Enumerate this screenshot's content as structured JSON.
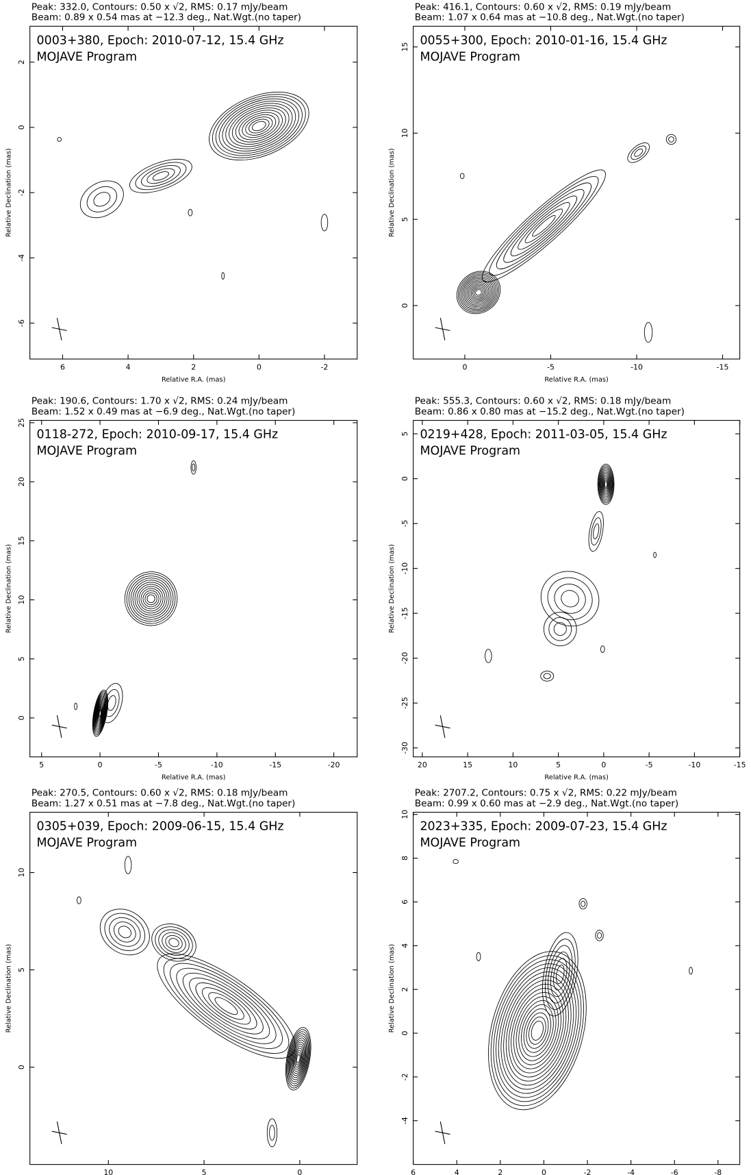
{
  "chart_data": [
    {
      "type": "contour",
      "header_line1": "Peak: 332.0, Contours: 0.50 x √2, RMS: 0.17 mJy/beam",
      "header_line2": "Beam: 0.89 x 0.54 mas at −12.3 deg., Nat.Wgt.(no taper)",
      "title": "0003+380, Epoch: 2010-07-12, 15.4 GHz",
      "subtitle": "MOJAVE Program",
      "x_label": "Relative R.A. (mas)",
      "y_label": "Relative Declination (mas)",
      "xlim": [
        7,
        -3
      ],
      "xticks": [
        6,
        4,
        2,
        0,
        -2
      ],
      "ylim": [
        -7.1,
        3.1
      ],
      "yticks": [
        -6,
        -4,
        -2,
        0,
        2
      ]
    },
    {
      "type": "contour",
      "header_line1": "Peak: 416.1, Contours: 0.60 x √2, RMS: 0.19 mJy/beam",
      "header_line2": "Beam: 1.07 x 0.64 mas at −10.8 deg., Nat.Wgt.(no taper)",
      "title": "0055+300, Epoch: 2010-01-16, 15.4 GHz",
      "subtitle": "MOJAVE Program",
      "x_label": "Relative R.A. (mas)",
      "y_label": "Relative Declination (mas)",
      "xlim": [
        3,
        -16
      ],
      "xticks": [
        0,
        -5,
        -10,
        -15
      ],
      "ylim": [
        -3.1,
        16.2
      ],
      "yticks": [
        0,
        5,
        10,
        15
      ]
    },
    {
      "type": "contour",
      "header_line1": "Peak: 190.6, Contours: 1.70 x √2, RMS: 0.24 mJy/beam",
      "header_line2": "Beam: 1.52 x 0.49 mas at −6.9 deg., Nat.Wgt.(no taper)",
      "title": "0118-272, Epoch: 2010-09-17, 15.4 GHz",
      "subtitle": "MOJAVE Program",
      "x_label": "Relative R.A. (mas)",
      "y_label": "Relative Declination (mas)",
      "xlim": [
        6,
        -22
      ],
      "xticks": [
        5,
        0,
        -5,
        -10,
        -15,
        -20
      ],
      "ylim": [
        -3.3,
        25.2
      ],
      "yticks": [
        0,
        5,
        10,
        15,
        20,
        25
      ]
    },
    {
      "type": "contour",
      "header_line1": "Peak: 555.3, Contours: 0.60 x √2, RMS: 0.18 mJy/beam",
      "header_line2": "Beam: 0.86 x 0.80 mas at −15.2 deg., Nat.Wgt.(no taper)",
      "title": "0219+428, Epoch: 2011-03-05, 15.4 GHz",
      "subtitle": "MOJAVE Program",
      "x_label": "Relative R.A. (mas)",
      "y_label": "Relative Declination (mas)",
      "xlim": [
        21,
        -15
      ],
      "xticks": [
        20,
        15,
        10,
        5,
        0,
        -5,
        -10,
        -15
      ],
      "ylim": [
        -31,
        6.5
      ],
      "yticks": [
        -30,
        -25,
        -20,
        -15,
        -10,
        -5,
        0,
        5
      ]
    },
    {
      "type": "contour",
      "header_line1": "Peak: 270.5, Contours: 0.60 x √2, RMS: 0.18 mJy/beam",
      "header_line2": "Beam: 1.27 x 0.51 mas at −7.8 deg., Nat.Wgt.(no taper)",
      "title": "0305+039, Epoch: 2009-06-15, 15.4 GHz",
      "subtitle": "MOJAVE Program",
      "x_label": "Relative R.A. (mas)",
      "y_label": "Relative Declination (mas)",
      "xlim": [
        14.1,
        -3
      ],
      "xticks": [
        10,
        5,
        0
      ],
      "ylim": [
        -5,
        13.1
      ],
      "yticks": [
        0,
        5,
        10
      ]
    },
    {
      "type": "contour",
      "header_line1": "Peak: 2707.2, Contours: 0.75 x √2, RMS: 0.22 mJy/beam",
      "header_line2": "Beam: 0.99 x 0.60 mas at −2.9 deg., Nat.Wgt.(no taper)",
      "title": "2023+335, Epoch: 2009-07-23, 15.4 GHz",
      "subtitle": "MOJAVE Program",
      "x_label": "Relative R.A. (mas)",
      "y_label": "Relative Declination (mas)",
      "xlim": [
        6,
        -9
      ],
      "xticks": [
        6,
        4,
        2,
        0,
        -2,
        -4,
        -6,
        -8
      ],
      "ylim": [
        -6,
        10.1
      ],
      "yticks": [
        -4,
        -2,
        0,
        2,
        4,
        6,
        8,
        10
      ]
    }
  ]
}
